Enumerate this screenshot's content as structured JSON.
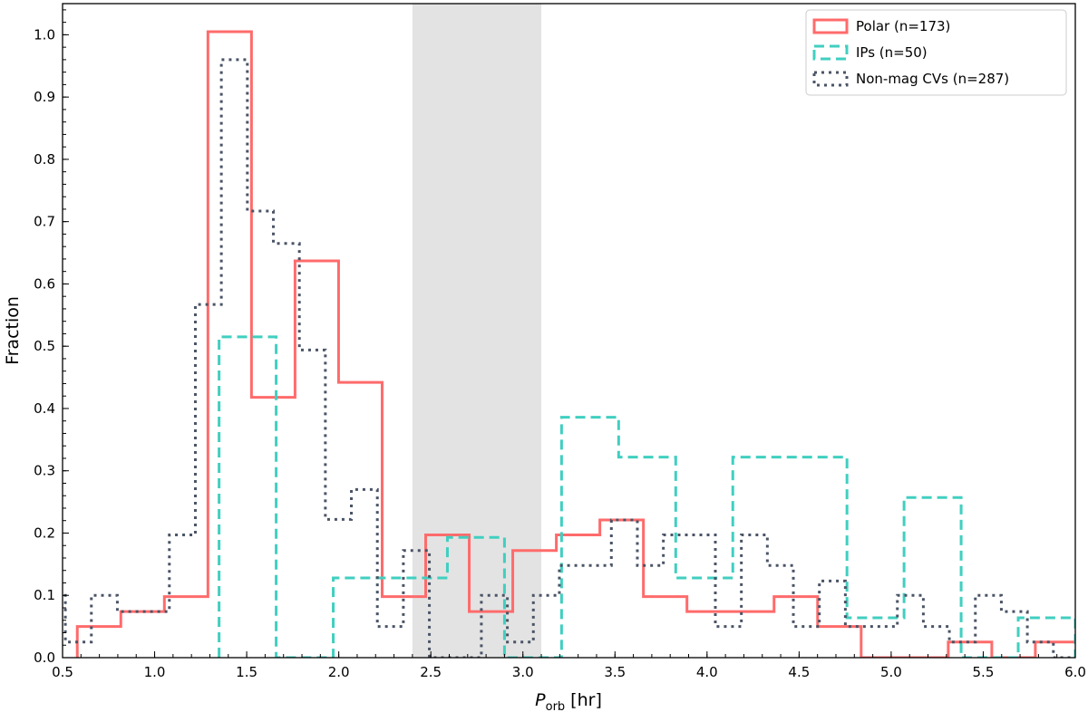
{
  "chart_data": {
    "type": "histogram-step",
    "xlabel": "P",
    "xlabel_sub": "orb",
    "xlabel_unit": "[hr]",
    "ylabel": "Fraction",
    "xlim": [
      0.5,
      6.0
    ],
    "ylim": [
      0,
      1.05
    ],
    "x_ticks": [
      "0.5",
      "1.0",
      "1.5",
      "2.0",
      "2.5",
      "3.0",
      "3.5",
      "4.0",
      "4.5",
      "5.0",
      "5.5",
      "6.0"
    ],
    "y_ticks": [
      "0.0",
      "0.1",
      "0.2",
      "0.3",
      "0.4",
      "0.5",
      "0.6",
      "0.7",
      "0.8",
      "0.9",
      "1.0"
    ],
    "grid": false,
    "legend_position": "top-right",
    "shaded_region": {
      "x_start": 2.4,
      "x_end": 3.1,
      "color": "#e3e3e3"
    },
    "series": [
      {
        "name": "Polar (n=173)",
        "color": "#ff6b6b",
        "style": "solid",
        "bin_start": 0.58,
        "bin_width": 0.2365,
        "values": [
          0.05,
          0.074,
          0.098,
          1.005,
          0.418,
          0.637,
          0.442,
          0.098,
          0.197,
          0.074,
          0.172,
          0.197,
          0.221,
          0.098,
          0.074,
          0.074,
          0.098,
          0.05,
          0,
          0,
          0.025,
          0,
          0.025
        ]
      },
      {
        "name": "IPs (n=50)",
        "color": "#40cfc0",
        "style": "dashed",
        "bin_start": 1.35,
        "bin_width": 0.31,
        "values": [
          0.515,
          0,
          0.128,
          0.128,
          0.193,
          0,
          0.386,
          0.322,
          0.128,
          0.322,
          0.322,
          0.064,
          0.257,
          0,
          0.064
        ]
      },
      {
        "name": "Non-mag CVs (n=287)",
        "color": "#4a5466",
        "style": "dotted",
        "bin_start": 0.374,
        "bin_width": 0.1412,
        "values": [
          0.1,
          0.025,
          0.1,
          0.074,
          0.074,
          0.197,
          0.567,
          0.96,
          0.717,
          0.665,
          0.494,
          0.222,
          0.27,
          0.05,
          0.172,
          0,
          0,
          0.1,
          0.025,
          0.1,
          0.148,
          0.148,
          0.221,
          0.148,
          0.197,
          0.197,
          0.05,
          0.197,
          0.148,
          0.05,
          0.123,
          0.05,
          0.05,
          0.1,
          0.05,
          0.025,
          0.1,
          0.074,
          0.025,
          0
        ]
      }
    ]
  }
}
